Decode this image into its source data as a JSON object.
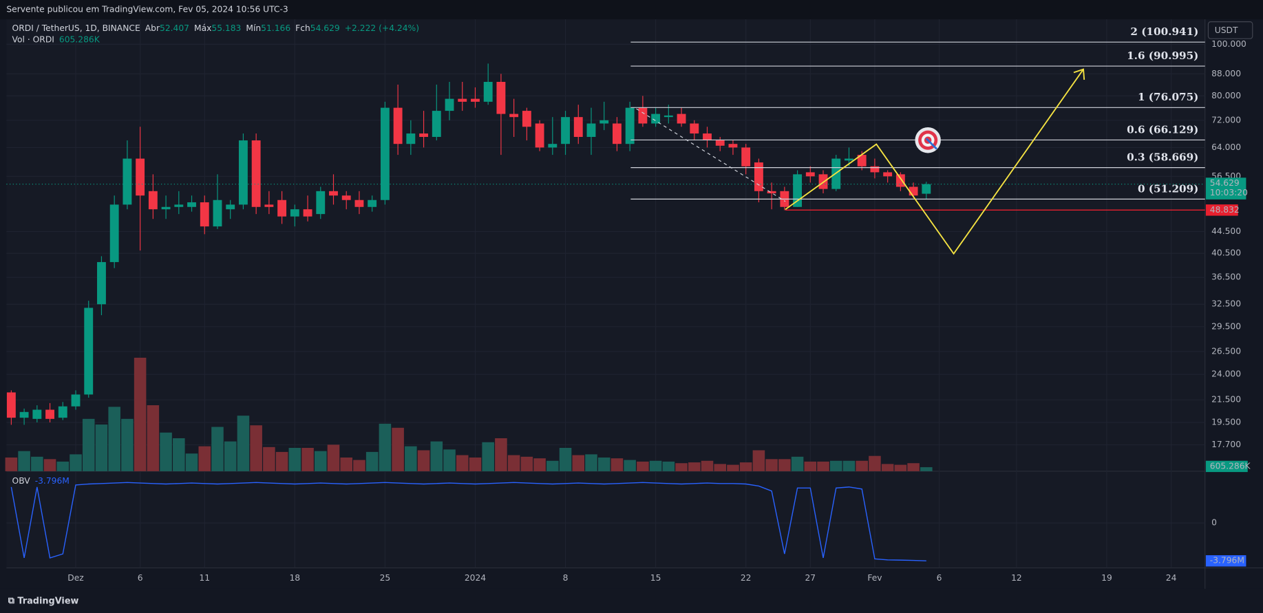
{
  "header": {
    "published": "Servente publicou em TradingView.com, Fev 05, 2024 10:56 UTC-3",
    "brand": "TradingView"
  },
  "chart_data": {
    "type": "candlestick",
    "title": "ORDI / TetherUS, 1D, BINANCE",
    "ohlc_names": [
      "Abr",
      "Máx",
      "Mín",
      "Fch"
    ],
    "change": "+2.222 (+4.24%)",
    "currency": "USDT",
    "x": [
      0,
      1,
      2,
      3,
      4,
      5,
      6,
      7,
      8,
      9,
      10,
      11,
      12,
      13,
      14,
      15,
      16,
      17,
      18,
      19,
      20,
      21,
      22,
      23,
      24,
      25,
      26,
      27,
      28,
      29,
      30,
      31,
      32,
      33,
      34,
      35,
      36,
      37,
      38,
      39,
      40,
      41,
      42,
      43,
      44,
      45,
      46,
      47,
      48,
      49,
      50,
      51,
      52,
      53,
      54,
      55,
      56,
      57,
      58,
      59,
      60,
      61,
      62,
      63,
      64,
      65,
      66,
      67,
      68,
      69,
      70,
      71
    ],
    "xlim": [
      -0.375,
      92.625
    ],
    "xticks": [
      {
        "value": 5,
        "label": "Dez"
      },
      {
        "value": 10,
        "label": "6"
      },
      {
        "value": 15,
        "label": "11"
      },
      {
        "value": 22,
        "label": "18"
      },
      {
        "value": 29,
        "label": "25"
      },
      {
        "value": 36,
        "label": "2024"
      },
      {
        "value": 43,
        "label": "8"
      },
      {
        "value": 50,
        "label": "15"
      },
      {
        "value": 57,
        "label": "22"
      },
      {
        "value": 62,
        "label": "27"
      },
      {
        "value": 67,
        "label": "Fev"
      },
      {
        "value": 72,
        "label": "6"
      },
      {
        "value": 78,
        "label": "12"
      },
      {
        "value": 85,
        "label": "19"
      },
      {
        "value": 90,
        "label": "24"
      }
    ],
    "open": [
      22.2,
      19.9,
      19.8,
      20.6,
      19.9,
      20.9,
      22,
      32.5,
      39,
      50,
      61,
      53,
      49,
      49.5,
      49.5,
      50.5,
      45.5,
      49,
      50,
      66,
      50,
      51,
      47.5,
      49,
      48,
      53,
      52,
      51,
      49.5,
      51,
      76,
      65,
      68,
      67,
      75,
      79,
      79,
      78,
      85,
      74,
      75,
      71,
      64,
      65,
      73,
      67,
      71,
      71,
      65,
      76,
      71,
      73,
      74,
      71,
      68,
      66,
      65,
      64,
      60,
      53,
      53,
      49.5,
      57.5,
      57,
      53.5,
      60.5,
      62,
      59,
      57.5,
      57,
      54,
      52.407
    ],
    "high": [
      22.4,
      20.7,
      21,
      21.2,
      21.3,
      22.4,
      33,
      40,
      52,
      66,
      70,
      57,
      52,
      53,
      52,
      52,
      57,
      51,
      68,
      68,
      53,
      53,
      50,
      52,
      54,
      57,
      53,
      53,
      52,
      78,
      84,
      72,
      75,
      84,
      85,
      85,
      83,
      92,
      88,
      79,
      76,
      72,
      73,
      75,
      77,
      76,
      78,
      73,
      78,
      80,
      76,
      77,
      76,
      72,
      70,
      67,
      66,
      65,
      61,
      55,
      54,
      58,
      59,
      58,
      62,
      64,
      63,
      61,
      58,
      57.5,
      55,
      55.183
    ],
    "low": [
      19.3,
      19.3,
      19.5,
      19.5,
      19.7,
      20.6,
      21.7,
      31,
      38,
      49,
      41,
      47,
      47,
      48,
      48.5,
      44,
      45,
      47,
      49,
      48,
      48,
      46,
      45.5,
      46.5,
      47,
      50,
      49,
      48,
      48.5,
      50,
      62,
      62,
      64,
      66,
      72,
      75,
      76,
      77,
      62,
      67,
      66,
      63,
      62,
      62,
      65,
      62,
      69,
      63,
      63,
      70,
      70,
      71,
      70,
      66,
      64,
      63,
      62,
      57,
      50.5,
      49,
      48.8,
      49.5,
      55,
      52.5,
      53,
      59,
      58,
      56,
      55,
      53,
      51.5,
      51.166
    ],
    "close": [
      19.9,
      20.4,
      20.6,
      19.8,
      20.9,
      22,
      32,
      39,
      50,
      61,
      52,
      49,
      49.5,
      50,
      50.5,
      45.5,
      51,
      50,
      66,
      49.5,
      49.5,
      47.5,
      49,
      47.5,
      53,
      52,
      51,
      49.5,
      51,
      76,
      65,
      68,
      67,
      75,
      79,
      78,
      78,
      85,
      74,
      73,
      70,
      64,
      65,
      73,
      67,
      71,
      72,
      65,
      76,
      71,
      74,
      73.5,
      71,
      68,
      66,
      64.5,
      64,
      59,
      53,
      52.5,
      49.5,
      57,
      56.5,
      53.5,
      61,
      61,
      59,
      57.5,
      56.5,
      54,
      52,
      54.629
    ],
    "colors": {
      "up": "#089981",
      "down": "#f23645"
    },
    "log_scale": true,
    "grid": true,
    "ylim": [
      15.79,
      111.0
    ],
    "yticks": [
      {
        "value": 100,
        "label": "100.000"
      },
      {
        "value": 88,
        "label": "88.000"
      },
      {
        "value": 80,
        "label": "80.000"
      },
      {
        "value": 72,
        "label": "72.000"
      },
      {
        "value": 64,
        "label": "64.000"
      },
      {
        "value": 56.5,
        "label": "56.500"
      },
      {
        "value": 44.5,
        "label": "44.500"
      },
      {
        "value": 40.5,
        "label": "40.500"
      },
      {
        "value": 36.5,
        "label": "36.500"
      },
      {
        "value": 32.5,
        "label": "32.500"
      },
      {
        "value": 29.5,
        "label": "29.500"
      },
      {
        "value": 26.5,
        "label": "26.500"
      },
      {
        "value": 24,
        "label": "24.000"
      },
      {
        "value": 21.5,
        "label": "21.500"
      },
      {
        "value": 19.5,
        "label": "19.500"
      },
      {
        "value": 17.7,
        "label": "17.700"
      }
    ],
    "countdown": "10:03:20",
    "levels": [
      {
        "value": 100.941,
        "label": "2 (100.941)"
      },
      {
        "value": 90.995,
        "label": "1.6 (90.995)"
      },
      {
        "value": 76.075,
        "label": "1 (76.075)"
      },
      {
        "value": 66.129,
        "label": "0.6 (66.129)"
      },
      {
        "value": 58.669,
        "label": "0.3 (58.669)"
      },
      {
        "value": 51.209,
        "label": "0 (51.209)"
      }
    ],
    "stop_level": 48.832,
    "volume": {
      "name": "Vol · ORDI",
      "colors": {
        "up": "#1b5f59",
        "down": "#7a2f35"
      },
      "ylim": [
        0,
        67800
      ],
      "values": [
        2060,
        3030,
        2180,
        1820,
        1450,
        2540,
        7870,
        7020,
        9680,
        7870,
        17060,
        9920,
        5810,
        4960,
        2660,
        3750,
        6660,
        4480,
        8350,
        6900,
        3630,
        2900,
        3510,
        3510,
        3030,
        3990,
        2060,
        1690,
        2900,
        7140,
        6530,
        3750,
        3150,
        4480,
        3270,
        2420,
        2060,
        4360,
        4960,
        2420,
        2180,
        1940,
        1570,
        3510,
        2420,
        2540,
        2060,
        1940,
        1690,
        1450,
        1570,
        1450,
        1210,
        1330,
        1570,
        1090,
        970,
        1330,
        3150,
        1820,
        1820,
        2180,
        1450,
        1450,
        1570,
        1570,
        1570,
        2300,
        1090,
        970,
        1210,
        605.286
      ],
      "last_label": "605.286K"
    },
    "obv": {
      "name": "OBV",
      "color": "#2962ff",
      "ylim": [
        -4.5,
        5.18
      ],
      "yticks": [
        0
      ],
      "values": [
        3.6,
        -3.5,
        3.6,
        -3.5,
        -3.1,
        3.8,
        3.9,
        3.95,
        4,
        4.05,
        4,
        3.95,
        3.9,
        3.95,
        4,
        3.95,
        3.9,
        3.95,
        4,
        4.05,
        4,
        3.95,
        3.9,
        3.95,
        4,
        3.95,
        3.9,
        3.95,
        4,
        4.05,
        4,
        3.95,
        3.9,
        3.95,
        4,
        3.95,
        3.9,
        3.95,
        4,
        4.05,
        4,
        3.95,
        3.9,
        3.95,
        4,
        3.95,
        3.9,
        3.95,
        4,
        4.05,
        4,
        3.95,
        3.9,
        3.95,
        4,
        3.95,
        3.95,
        3.9,
        3.7,
        3.2,
        -3.1,
        3.5,
        3.5,
        -3.5,
        3.5,
        3.6,
        3.4,
        -3.6,
        -3.7,
        -3.72,
        -3.75,
        -3.796
      ],
      "last_label": "-3.796M"
    }
  }
}
